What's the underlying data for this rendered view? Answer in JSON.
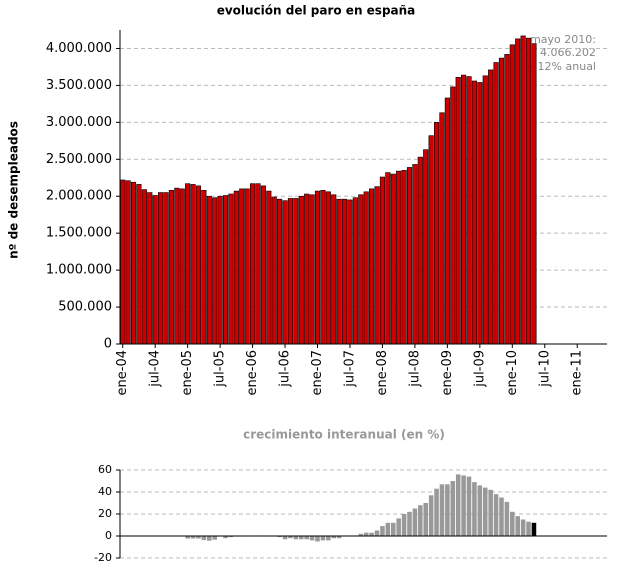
{
  "chart_data": [
    {
      "type": "bar",
      "title": "evolución del paro en españa",
      "y_label": "nº de desempleados",
      "color": "#cc0000",
      "grid": true,
      "annotation": [
        "mayo 2010:",
        "4.066.202",
        "+12% anual"
      ],
      "categories": [
        "ene-04",
        null,
        null,
        null,
        null,
        null,
        "jul-04",
        null,
        null,
        null,
        null,
        null,
        "ene-05",
        null,
        null,
        null,
        null,
        null,
        "jul-05",
        null,
        null,
        null,
        null,
        null,
        "ene-06",
        null,
        null,
        null,
        null,
        null,
        "jul-06",
        null,
        null,
        null,
        null,
        null,
        "ene-07",
        null,
        null,
        null,
        null,
        null,
        "jul-07",
        null,
        null,
        null,
        null,
        null,
        "ene-08",
        null,
        null,
        null,
        null,
        null,
        "jul-08",
        null,
        null,
        null,
        null,
        null,
        "ene-09",
        null,
        null,
        null,
        null,
        null,
        "jul-09",
        null,
        null,
        null,
        null,
        null,
        "ene-10",
        null,
        null,
        null,
        null,
        null,
        "jul-10",
        null,
        null,
        null,
        null,
        null,
        "ene-11",
        null,
        null,
        null,
        null,
        null
      ],
      "values": [
        2220000,
        2210000,
        2190000,
        2160000,
        2090000,
        2050000,
        2010000,
        2050000,
        2050000,
        2080000,
        2110000,
        2100000,
        2170000,
        2160000,
        2140000,
        2080000,
        2000000,
        1980000,
        2000000,
        2010000,
        2030000,
        2070000,
        2100000,
        2100000,
        2170000,
        2170000,
        2140000,
        2070000,
        1990000,
        1960000,
        1940000,
        1970000,
        1970000,
        2000000,
        2030000,
        2020000,
        2070000,
        2080000,
        2060000,
        2020000,
        1960000,
        1960000,
        1950000,
        1980000,
        2020000,
        2060000,
        2100000,
        2130000,
        2260000,
        2320000,
        2300000,
        2340000,
        2350000,
        2390000,
        2430000,
        2530000,
        2630000,
        2820000,
        3000000,
        3130000,
        3330000,
        3480000,
        3610000,
        3640000,
        3620000,
        3560000,
        3540000,
        3630000,
        3710000,
        3810000,
        3870000,
        3920000,
        4050000,
        4130000,
        4170000,
        4140000,
        4066202,
        null,
        null,
        null,
        null,
        null,
        null,
        null,
        null,
        null,
        null,
        null,
        null,
        null
      ],
      "ylim": [
        0,
        4250000
      ],
      "yticks": [
        0,
        {
          "value": 500000,
          "label": "500.000"
        },
        {
          "value": 1000000,
          "label": "1.000.000"
        },
        {
          "value": 1500000,
          "label": "1.500.000"
        },
        {
          "value": 2000000,
          "label": "2.000.000"
        },
        {
          "value": 2500000,
          "label": "2.500.000"
        },
        {
          "value": 3000000,
          "label": "3.000.000"
        },
        {
          "value": 3500000,
          "label": "3.500.000"
        },
        {
          "value": 4000000,
          "label": "4.000.000"
        }
      ]
    },
    {
      "type": "bar",
      "title": "crecimiento interanual (en %)",
      "color": "#999999",
      "last_color": "#000000",
      "grid": true,
      "values": [
        null,
        null,
        null,
        null,
        null,
        null,
        null,
        null,
        null,
        null,
        null,
        null,
        -2.3,
        -2.3,
        -2.3,
        -3.7,
        -4.3,
        -3.4,
        -0.5,
        -2,
        -1,
        -0.5,
        -0.5,
        0,
        0,
        0.5,
        0,
        -0.5,
        -0.5,
        -1,
        -3,
        -2,
        -3,
        -3,
        -3,
        -4,
        -5,
        -4,
        -4,
        -2,
        -2,
        0,
        0.5,
        0.5,
        2,
        3,
        3,
        5,
        9,
        12,
        12,
        16,
        20,
        22,
        25,
        28,
        30,
        37,
        43,
        47,
        47,
        50,
        56,
        55,
        54,
        49,
        46,
        44,
        42,
        38,
        35,
        31,
        22,
        18,
        15,
        13,
        12,
        null,
        null,
        null,
        null,
        null,
        null,
        null,
        null,
        null,
        null,
        null,
        null,
        null
      ],
      "ylim": [
        -20,
        60
      ],
      "yticks": [
        -20,
        0,
        20,
        40,
        60
      ]
    }
  ]
}
